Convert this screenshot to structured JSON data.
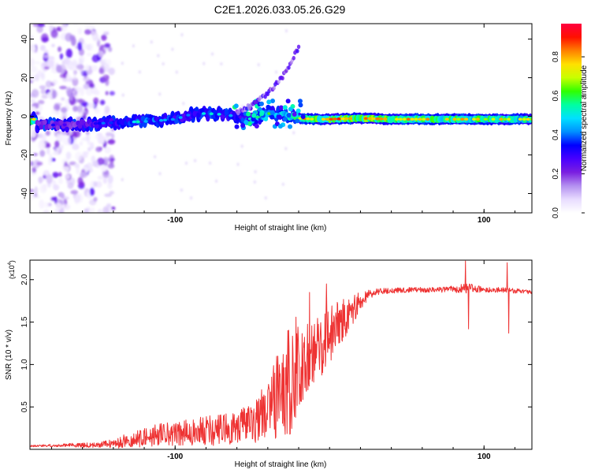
{
  "title": "C2E1.2026.033.05.26.G29",
  "chart_data": [
    {
      "type": "heatmap",
      "id": "spectrogram",
      "title": "C2E1.2026.033.05.26.G29",
      "xlabel": "Height of straight line (km)",
      "ylabel": "Frequency (Hz)",
      "xlim": [
        -194,
        131
      ],
      "ylim": [
        -50,
        48
      ],
      "xticks": [
        -100,
        100
      ],
      "yticks": [
        -40,
        -20,
        0,
        20,
        40
      ],
      "colorbar": {
        "label": "Normalized spectral amplitude",
        "range": [
          0,
          0.97
        ],
        "ticks": [
          0.0,
          0.2,
          0.4,
          0.6,
          0.8
        ],
        "tick_labels": [
          "0.0",
          "0.2",
          "0.4",
          "0.6",
          "0.8"
        ],
        "colormap": [
          "#ffffff",
          "#e8dcff",
          "#b490f0",
          "#7a1fe0",
          "#4800ff",
          "#0000ff",
          "#0090ff",
          "#00e0ff",
          "#00ffa0",
          "#30ff00",
          "#c8ff00",
          "#ffe000",
          "#ff8000",
          "#ff1000",
          "#ff0040"
        ]
      },
      "signal_track": [
        {
          "x": -190,
          "f": -4.5,
          "amp": 0.35
        },
        {
          "x": -175,
          "f": -4.5,
          "amp": 0.32
        },
        {
          "x": -160,
          "f": -4.0,
          "amp": 0.34
        },
        {
          "x": -145,
          "f": -3.5,
          "amp": 0.42
        },
        {
          "x": -130,
          "f": -3.0,
          "amp": 0.52
        },
        {
          "x": -115,
          "f": -2.5,
          "amp": 0.55
        },
        {
          "x": -100,
          "f": -1.5,
          "amp": 0.5
        },
        {
          "x": -90,
          "f": 1.0,
          "amp": 0.45
        },
        {
          "x": -80,
          "f": 1.5,
          "amp": 0.55
        },
        {
          "x": -70,
          "f": 1.0,
          "amp": 0.5
        },
        {
          "x": -60,
          "f": 0.0,
          "amp": 0.45
        },
        {
          "x": -50,
          "f": -1.5,
          "amp": 0.6
        },
        {
          "x": -40,
          "f": 1.5,
          "amp": 0.65
        },
        {
          "x": -30,
          "f": 1.0,
          "amp": 0.7
        },
        {
          "x": -20,
          "f": -1.0,
          "amp": 0.8
        },
        {
          "x": -10,
          "f": -1.5,
          "amp": 0.88
        },
        {
          "x": 0,
          "f": -1.5,
          "amp": 0.9
        },
        {
          "x": 20,
          "f": -1.0,
          "amp": 0.9
        },
        {
          "x": 40,
          "f": -1.5,
          "amp": 0.85
        },
        {
          "x": 60,
          "f": -1.5,
          "amp": 0.82
        },
        {
          "x": 80,
          "f": -1.5,
          "amp": 0.82
        },
        {
          "x": 100,
          "f": -1.5,
          "amp": 0.8
        },
        {
          "x": 120,
          "f": -1.5,
          "amp": 0.78
        },
        {
          "x": 131,
          "f": -1.5,
          "amp": 0.75
        }
      ],
      "rising_branch": [
        {
          "x": -60,
          "f": 2
        },
        {
          "x": -50,
          "f": 6
        },
        {
          "x": -40,
          "f": 12
        },
        {
          "x": -30,
          "f": 21
        },
        {
          "x": -25,
          "f": 28
        },
        {
          "x": -20,
          "f": 36
        }
      ],
      "noise_region": {
        "x_from": -194,
        "x_to": -140,
        "f_from": -50,
        "f_to": 48
      }
    },
    {
      "type": "line",
      "id": "snr",
      "xlabel": "Height of straight line (km)",
      "ylabel": "SNR (10 * v/v)",
      "y_multiplier_label": "(x10",
      "y_multiplier_exp": "4",
      "xlim": [
        -194,
        131
      ],
      "ylim": [
        0,
        2.23
      ],
      "xticks": [
        -100,
        100
      ],
      "yticks": [
        0.5,
        1.0,
        1.5,
        2.0
      ],
      "ytick_labels": [
        "0.5",
        "1.0",
        "1.5",
        "2.0"
      ],
      "color": "#ee3333",
      "series": [
        {
          "name": "SNR (x10^4)",
          "x": [
            -194,
            -170,
            -150,
            -140,
            -130,
            -120,
            -110,
            -100,
            -90,
            -80,
            -70,
            -60,
            -55,
            -50,
            -45,
            -40,
            -35,
            -30,
            -25,
            -20,
            -15,
            -10,
            -5,
            0,
            5,
            10,
            15,
            20,
            25,
            30,
            40,
            50,
            60,
            70,
            80,
            90,
            100,
            110,
            120,
            131
          ],
          "y": [
            0.04,
            0.05,
            0.05,
            0.07,
            0.1,
            0.14,
            0.17,
            0.18,
            0.2,
            0.22,
            0.23,
            0.24,
            0.28,
            0.3,
            0.38,
            0.45,
            0.6,
            0.7,
            0.85,
            0.95,
            1.05,
            1.15,
            1.25,
            1.35,
            1.45,
            1.55,
            1.65,
            1.75,
            1.82,
            1.86,
            1.87,
            1.88,
            1.88,
            1.88,
            1.89,
            1.9,
            1.88,
            1.88,
            1.87,
            1.85
          ],
          "noise": [
            0.01,
            0.02,
            0.03,
            0.05,
            0.1,
            0.12,
            0.14,
            0.15,
            0.14,
            0.14,
            0.14,
            0.14,
            0.18,
            0.25,
            0.35,
            0.42,
            0.5,
            0.55,
            0.5,
            0.45,
            0.42,
            0.4,
            0.38,
            0.35,
            0.3,
            0.25,
            0.18,
            0.1,
            0.06,
            0.04,
            0.03,
            0.03,
            0.03,
            0.03,
            0.04,
            0.06,
            0.03,
            0.03,
            0.03,
            0.02
          ]
        }
      ],
      "spikes": [
        {
          "x": -13,
          "y": 1.85
        },
        {
          "x": -2,
          "y": 1.95
        },
        {
          "x": 88,
          "y": 2.22
        },
        {
          "x": 90,
          "y": 1.42
        },
        {
          "x": 115,
          "y": 2.2
        },
        {
          "x": 116,
          "y": 1.37
        }
      ]
    }
  ]
}
